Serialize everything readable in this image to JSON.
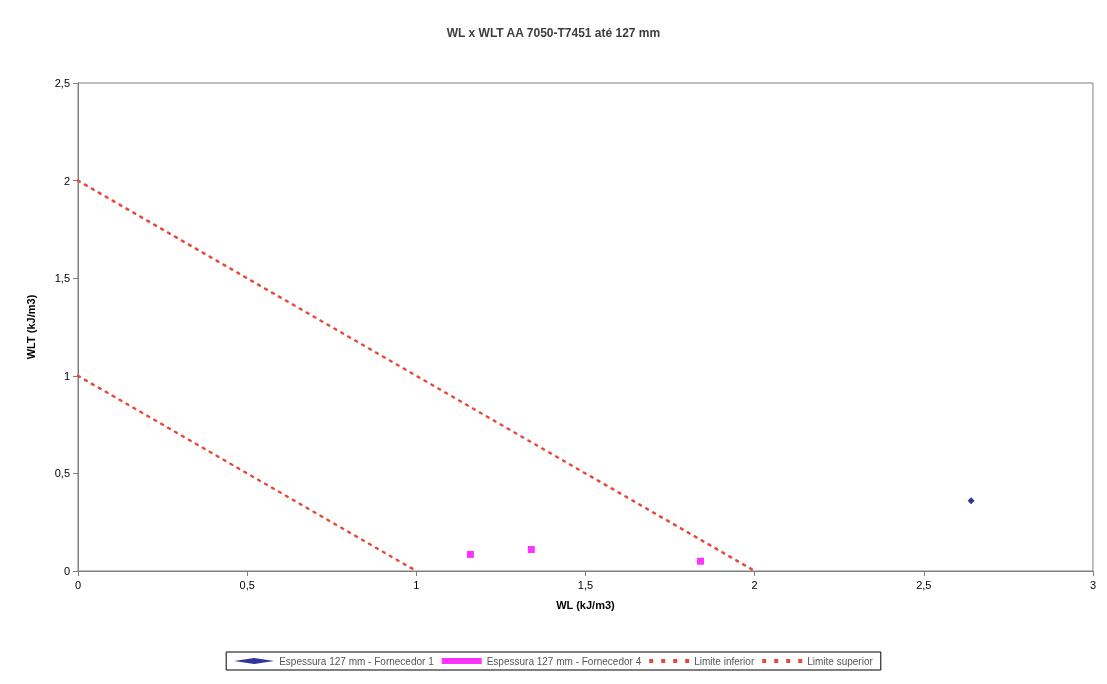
{
  "chart_data": {
    "type": "scatter",
    "title": "WL x WLT AA 7050-T7451 até 127 mm",
    "xlabel": "WL (kJ/m3)",
    "ylabel": "WLT (kJ/m3)",
    "series": [
      {
        "name": "Espessura 127 mm - Fornecedor 1",
        "type": "scatter",
        "marker": "diamond",
        "color": "#000080",
        "x": [
          2.64
        ],
        "values": [
          0.36
        ]
      },
      {
        "name": "Espessura 127 mm - Fornecedor 4",
        "type": "scatter",
        "marker": "square",
        "color": "#ff00ff",
        "x": [
          1.16,
          1.34,
          1.84
        ],
        "values": [
          0.085,
          0.11,
          0.05
        ]
      },
      {
        "name": "Limite inferior",
        "type": "line",
        "marker": "none",
        "line_style": "dotted",
        "color": "#e8483a",
        "x": [
          0,
          1
        ],
        "values": [
          1,
          0
        ]
      },
      {
        "name": "Limite superior",
        "type": "line",
        "marker": "none",
        "line_style": "dotted",
        "color": "#e8483a",
        "x": [
          0,
          2
        ],
        "values": [
          2,
          0
        ]
      }
    ],
    "xlim": [
      0,
      3
    ],
    "xticks": [
      0,
      {
        "value": 0.5,
        "label": "0,5"
      },
      1,
      {
        "value": 1.5,
        "label": "1,5"
      },
      2,
      {
        "value": 2.5,
        "label": "2,5"
      },
      3
    ],
    "ylim": [
      0,
      2.5
    ],
    "yticks": [
      0,
      {
        "value": 0.5,
        "label": "0,5"
      },
      1,
      {
        "value": 1.5,
        "label": "1,5"
      },
      2,
      {
        "value": 2.5,
        "label": "2,5"
      }
    ],
    "grid": false,
    "legend": "bottom"
  }
}
